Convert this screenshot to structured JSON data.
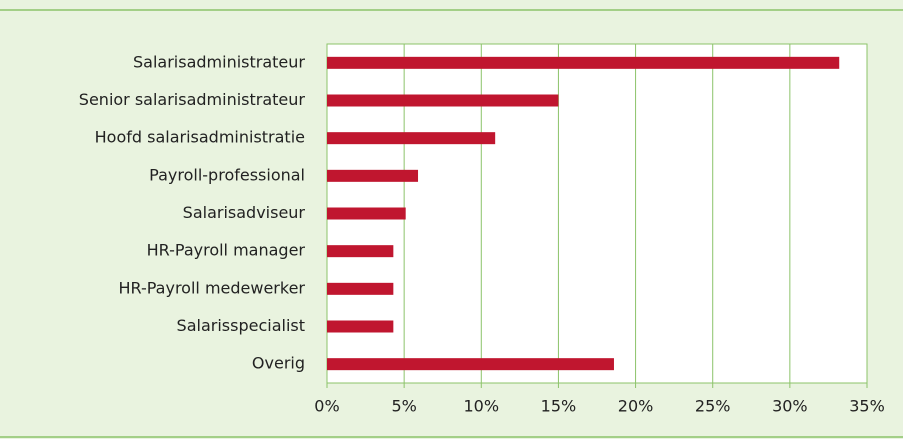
{
  "chart_data": {
    "type": "bar",
    "orientation": "horizontal",
    "categories": [
      "Salarisadministrateur",
      "Senior salarisadministrateur",
      "Hoofd salarisadministratie",
      "Payroll-professional",
      "Salarisadviseur",
      "HR-Payroll manager",
      "HR-Payroll medewerker",
      "Salarisspecialist",
      "Overig"
    ],
    "values": [
      33.2,
      15.0,
      10.9,
      5.9,
      5.1,
      4.3,
      4.3,
      4.3,
      18.6
    ],
    "color": "#c0162f",
    "xlim": [
      0,
      35
    ],
    "xticks": [
      {
        "value": 0,
        "label": "0%"
      },
      {
        "value": 5,
        "label": "5%"
      },
      {
        "value": 10,
        "label": "10%"
      },
      {
        "value": 15,
        "label": "15%"
      },
      {
        "value": 20,
        "label": "20%"
      },
      {
        "value": 25,
        "label": "25%"
      },
      {
        "value": 30,
        "label": "30%"
      },
      {
        "value": 35,
        "label": "35%"
      }
    ],
    "grid": true
  }
}
